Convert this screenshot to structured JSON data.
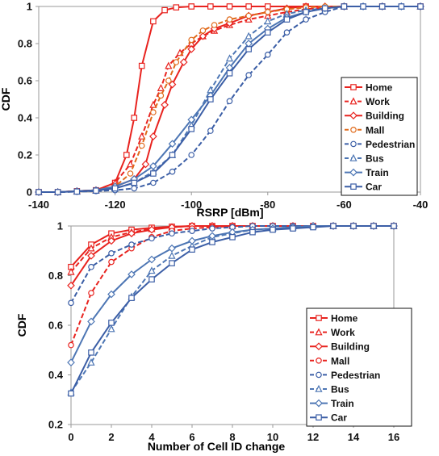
{
  "colors": {
    "red": "#e8231f",
    "orange": "#e06a1b",
    "blue": "#3b5ea6",
    "steel": "#4d76b4",
    "axis": "#9a9a9a"
  },
  "chart_data": [
    {
      "type": "line",
      "xlabel": "RSRP [dBm]",
      "ylabel": "CDF",
      "xlim": [
        -140,
        -40
      ],
      "ylim": [
        0,
        1
      ],
      "xticks": [
        -140,
        -120,
        -100,
        -80,
        -60,
        -40
      ],
      "yticks": [
        0,
        0.2,
        0.4,
        0.6,
        0.8,
        1
      ],
      "xtick_labels": [
        "-140",
        "-120",
        "-100",
        "-80",
        "-60",
        "-40"
      ],
      "ytick_labels": [
        "0",
        "0.2",
        "0.4",
        "0.6",
        "0.8",
        "1"
      ],
      "grid": false,
      "legend_position": "right",
      "series": [
        {
          "name": "Home",
          "color": "#e8231f",
          "dash": "solid",
          "marker": "square",
          "x": [
            -140,
            -135,
            -130,
            -125,
            -120,
            -117,
            -115,
            -113,
            -110,
            -107,
            -104,
            -100,
            -95,
            -90,
            -85,
            -80,
            -70,
            -60,
            -50,
            -40
          ],
          "y": [
            0,
            0,
            0.005,
            0.01,
            0.05,
            0.2,
            0.4,
            0.68,
            0.92,
            0.98,
            0.995,
            1,
            1,
            1,
            1,
            1,
            1,
            1,
            1,
            1
          ]
        },
        {
          "name": "Work",
          "color": "#e8231f",
          "dash": "dashed",
          "marker": "triangle",
          "x": [
            -140,
            -135,
            -130,
            -125,
            -120,
            -116,
            -113,
            -110,
            -108,
            -106,
            -103,
            -100,
            -97,
            -94,
            -90,
            -85,
            -80,
            -75,
            -70,
            -65,
            -60,
            -50,
            -40
          ],
          "y": [
            0,
            0,
            0.005,
            0.01,
            0.05,
            0.15,
            0.3,
            0.47,
            0.56,
            0.68,
            0.75,
            0.8,
            0.84,
            0.87,
            0.9,
            0.93,
            0.95,
            0.97,
            0.985,
            0.995,
            1,
            1,
            1
          ]
        },
        {
          "name": "Building",
          "color": "#e8231f",
          "dash": "solid",
          "marker": "diamond",
          "x": [
            -140,
            -135,
            -130,
            -125,
            -120,
            -115,
            -112,
            -110,
            -107,
            -105,
            -102,
            -100,
            -97,
            -94,
            -90,
            -85,
            -80,
            -75,
            -70,
            -65,
            -60,
            -50,
            -40
          ],
          "y": [
            0,
            0,
            0.005,
            0.01,
            0.03,
            0.07,
            0.15,
            0.3,
            0.47,
            0.58,
            0.7,
            0.77,
            0.84,
            0.88,
            0.91,
            0.95,
            0.97,
            0.99,
            1,
            1,
            1,
            1,
            1
          ]
        },
        {
          "name": "Mall",
          "color": "#e06a1b",
          "dash": "dashed",
          "marker": "circle",
          "x": [
            -140,
            -135,
            -130,
            -125,
            -120,
            -116,
            -113,
            -110,
            -108,
            -106,
            -104,
            -100,
            -97,
            -94,
            -90,
            -85,
            -80,
            -75,
            -70,
            -65,
            -60,
            -50,
            -40
          ],
          "y": [
            0,
            0,
            0.005,
            0.01,
            0.03,
            0.1,
            0.25,
            0.43,
            0.52,
            0.6,
            0.7,
            0.82,
            0.87,
            0.9,
            0.93,
            0.95,
            0.97,
            0.985,
            0.995,
            1,
            1,
            1,
            1
          ]
        },
        {
          "name": "Pedestrian",
          "color": "#3b5ea6",
          "dash": "dashed",
          "marker": "circle",
          "x": [
            -140,
            -135,
            -130,
            -125,
            -120,
            -115,
            -110,
            -105,
            -100,
            -95,
            -90,
            -85,
            -80,
            -75,
            -70,
            -65,
            -60,
            -55,
            -50,
            -45,
            -40
          ],
          "y": [
            0,
            0,
            0.002,
            0.005,
            0.01,
            0.02,
            0.05,
            0.11,
            0.2,
            0.33,
            0.49,
            0.63,
            0.74,
            0.86,
            0.93,
            0.97,
            1,
            1,
            1,
            1,
            1
          ]
        },
        {
          "name": "Bus",
          "color": "#4d76b4",
          "dash": "dashed",
          "marker": "triangle",
          "x": [
            -140,
            -135,
            -130,
            -125,
            -120,
            -115,
            -110,
            -105,
            -100,
            -95,
            -90,
            -85,
            -80,
            -75,
            -70,
            -65,
            -60,
            -55,
            -50,
            -45,
            -40
          ],
          "y": [
            0,
            0,
            0.003,
            0.008,
            0.02,
            0.05,
            0.11,
            0.2,
            0.36,
            0.55,
            0.72,
            0.84,
            0.92,
            0.96,
            0.98,
            0.99,
            1,
            1,
            1,
            1,
            1
          ]
        },
        {
          "name": "Train",
          "color": "#4d76b4",
          "dash": "solid",
          "marker": "diamond",
          "x": [
            -140,
            -135,
            -130,
            -125,
            -120,
            -115,
            -110,
            -105,
            -100,
            -95,
            -90,
            -85,
            -80,
            -75,
            -70,
            -65,
            -60,
            -55,
            -50,
            -45,
            -40
          ],
          "y": [
            0,
            0,
            0.005,
            0.01,
            0.03,
            0.07,
            0.14,
            0.26,
            0.39,
            0.52,
            0.67,
            0.8,
            0.88,
            0.94,
            0.97,
            0.99,
            1,
            1,
            1,
            1,
            1
          ]
        },
        {
          "name": "Car",
          "color": "#3b5ea6",
          "dash": "solid",
          "marker": "square",
          "x": [
            -140,
            -135,
            -130,
            -125,
            -120,
            -115,
            -110,
            -105,
            -100,
            -95,
            -90,
            -85,
            -80,
            -75,
            -70,
            -65,
            -60,
            -55,
            -50,
            -45,
            -40
          ],
          "y": [
            0,
            0,
            0.003,
            0.008,
            0.02,
            0.05,
            0.1,
            0.2,
            0.34,
            0.5,
            0.64,
            0.77,
            0.86,
            0.93,
            0.97,
            0.99,
            1,
            1,
            1,
            1,
            1
          ]
        }
      ]
    },
    {
      "type": "line",
      "xlabel": "Number of Cell ID change",
      "ylabel": "CDF",
      "xlim": [
        0,
        16
      ],
      "ylim": [
        0.2,
        1
      ],
      "xticks": [
        0,
        2,
        4,
        6,
        8,
        10,
        12,
        14,
        16
      ],
      "yticks": [
        0.2,
        0.4,
        0.6,
        0.8,
        1
      ],
      "xtick_labels": [
        "0",
        "2",
        "4",
        "6",
        "8",
        "10",
        "12",
        "14",
        "16"
      ],
      "ytick_labels": [
        "0.2",
        "0.4",
        "0.6",
        "0.8",
        "1"
      ],
      "grid": false,
      "legend_position": "right",
      "series": [
        {
          "name": "Home",
          "color": "#e8231f",
          "dash": "solid",
          "marker": "square",
          "x": [
            0,
            1,
            2,
            3,
            4,
            5,
            6,
            7,
            8,
            9,
            10,
            11,
            12,
            13,
            14,
            15,
            16
          ],
          "y": [
            0.835,
            0.925,
            0.97,
            0.985,
            0.993,
            0.997,
            1,
            1,
            1,
            1,
            1,
            1,
            1,
            1,
            1,
            1,
            1
          ]
        },
        {
          "name": "Work",
          "color": "#e8231f",
          "dash": "dashed",
          "marker": "triangle",
          "x": [
            0,
            1,
            2,
            3,
            4,
            5,
            6,
            7,
            8,
            9,
            10,
            11,
            12,
            13,
            14,
            15,
            16
          ],
          "y": [
            0.815,
            0.91,
            0.955,
            0.975,
            0.988,
            0.995,
            1,
            1,
            1,
            1,
            1,
            1,
            1,
            1,
            1,
            1,
            1
          ]
        },
        {
          "name": "Building",
          "color": "#e8231f",
          "dash": "solid",
          "marker": "diamond",
          "x": [
            0,
            1,
            2,
            3,
            4,
            5,
            6,
            7,
            8,
            9,
            10,
            11,
            12,
            13,
            14,
            15,
            16
          ],
          "y": [
            0.76,
            0.88,
            0.94,
            0.97,
            0.985,
            0.995,
            1,
            1,
            1,
            1,
            1,
            1,
            1,
            1,
            1,
            1,
            1
          ]
        },
        {
          "name": "Mall",
          "color": "#e8231f",
          "dash": "dashed",
          "marker": "circle",
          "x": [
            0,
            1,
            2,
            3,
            4,
            5,
            6,
            7,
            8,
            9,
            10,
            11,
            12,
            13,
            14,
            15,
            16
          ],
          "y": [
            0.52,
            0.73,
            0.855,
            0.91,
            0.955,
            0.98,
            0.99,
            0.995,
            1,
            1,
            1,
            1,
            1,
            1,
            1,
            1,
            1
          ]
        },
        {
          "name": "Pedestrian",
          "color": "#3b5ea6",
          "dash": "dashed",
          "marker": "circle",
          "x": [
            0,
            1,
            2,
            3,
            4,
            5,
            6,
            7,
            8,
            9,
            10,
            11,
            12,
            13,
            14,
            15,
            16
          ],
          "y": [
            0.69,
            0.835,
            0.89,
            0.925,
            0.95,
            0.97,
            0.98,
            0.99,
            0.995,
            1,
            1,
            1,
            1,
            1,
            1,
            1,
            1
          ]
        },
        {
          "name": "Bus",
          "color": "#4d76b4",
          "dash": "dashed",
          "marker": "triangle",
          "x": [
            0,
            1,
            2,
            3,
            4,
            5,
            6,
            7,
            8,
            9,
            10,
            11,
            12,
            13,
            14,
            15,
            16
          ],
          "y": [
            0.33,
            0.45,
            0.585,
            0.715,
            0.82,
            0.88,
            0.92,
            0.955,
            0.97,
            0.985,
            0.99,
            0.995,
            1,
            1,
            1,
            1,
            1
          ]
        },
        {
          "name": "Train",
          "color": "#4d76b4",
          "dash": "solid",
          "marker": "diamond",
          "x": [
            0,
            1,
            2,
            3,
            4,
            5,
            6,
            7,
            8,
            9,
            10,
            11,
            12,
            13,
            14,
            15,
            16
          ],
          "y": [
            0.45,
            0.615,
            0.725,
            0.805,
            0.865,
            0.91,
            0.94,
            0.96,
            0.975,
            0.985,
            0.99,
            0.995,
            1,
            1,
            1,
            1,
            1
          ]
        },
        {
          "name": "Car",
          "color": "#3b5ea6",
          "dash": "solid",
          "marker": "square",
          "x": [
            0,
            1,
            2,
            3,
            4,
            5,
            6,
            7,
            8,
            9,
            10,
            11,
            12,
            13,
            14,
            15,
            16
          ],
          "y": [
            0.325,
            0.49,
            0.61,
            0.71,
            0.785,
            0.85,
            0.905,
            0.935,
            0.955,
            0.975,
            0.985,
            0.99,
            0.995,
            1,
            1,
            1,
            1
          ]
        }
      ]
    }
  ]
}
